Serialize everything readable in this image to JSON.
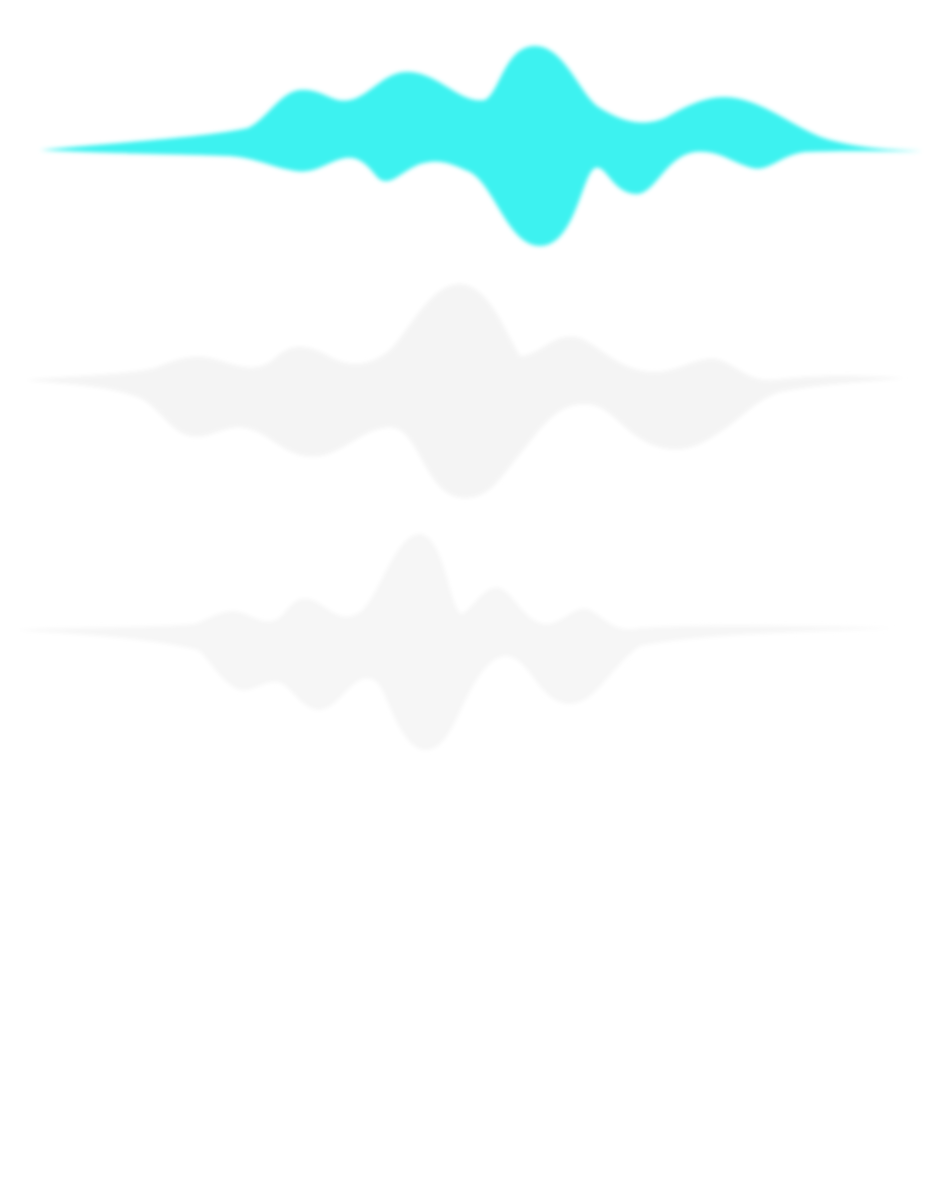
{
  "waves": [
    {
      "name": "waveform-active",
      "color": "#3DF2F0"
    },
    {
      "name": "waveform-idle-1",
      "color": "#F4F4F4"
    },
    {
      "name": "waveform-idle-2",
      "color": "#F6F6F6"
    }
  ]
}
